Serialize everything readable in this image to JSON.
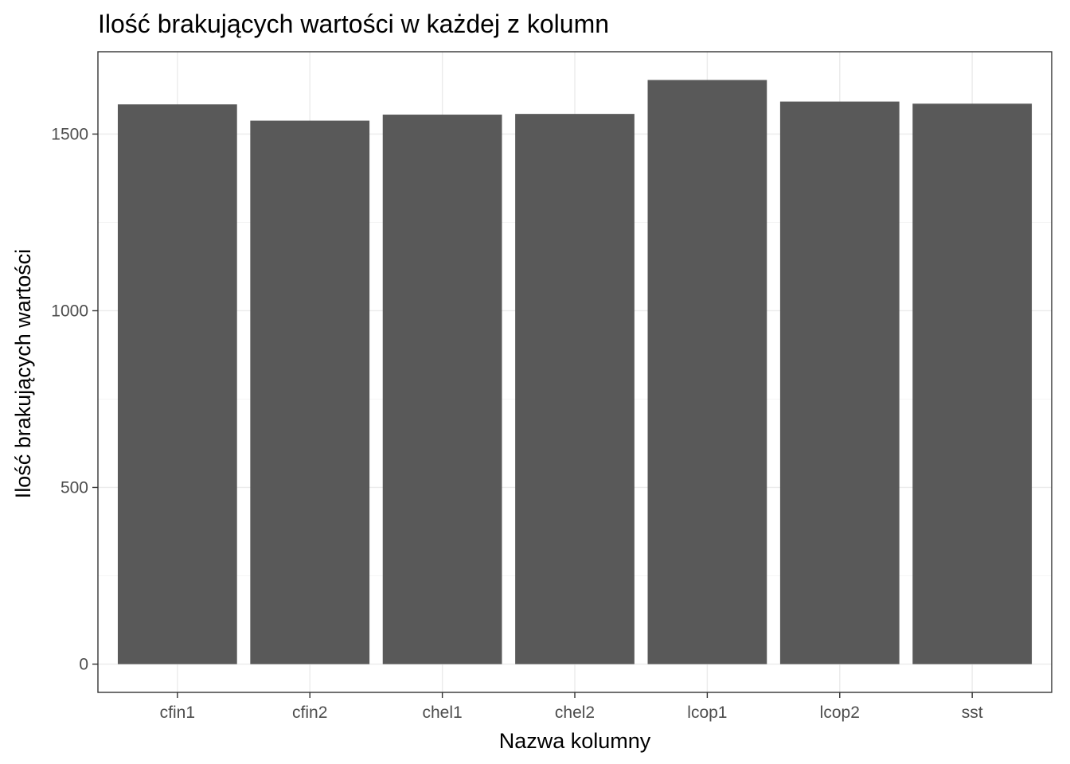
{
  "chart_data": {
    "type": "bar",
    "title": "Ilość brakujących wartości w każdej z kolumn",
    "xlabel": "Nazwa kolumny",
    "ylabel": "Ilość brakujących wartości",
    "categories": [
      "cfin1",
      "cfin2",
      "chel1",
      "chel2",
      "lcop1",
      "lcop2",
      "sst"
    ],
    "values": [
      1584,
      1538,
      1555,
      1557,
      1653,
      1592,
      1586
    ],
    "ylim": [
      -80,
      1733
    ],
    "yticks": [
      0,
      500,
      1000,
      1500
    ],
    "ytick_labels": [
      "0",
      "500",
      "1000",
      "1500"
    ],
    "grid": true,
    "bar_color": "#595959"
  }
}
